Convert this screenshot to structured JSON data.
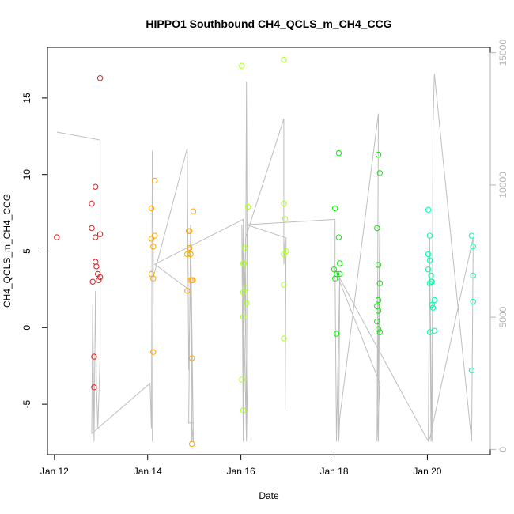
{
  "chart_data": {
    "type": "scatter",
    "title": "HIPPO1 Southbound CH4_QCLS_m_CH4_CCG",
    "xlabel": "Date",
    "ylabel": "CH4_QCLS_m_CH4_CCG",
    "x_unit": "days in January (date axis)",
    "xlim": [
      11.85,
      21.35
    ],
    "ylim": [
      -8.3,
      18.3
    ],
    "y2lim": [
      -200,
      15200
    ],
    "x_ticks": [
      {
        "value": 12,
        "label": "Jan 12"
      },
      {
        "value": 14,
        "label": "Jan 14"
      },
      {
        "value": 16,
        "label": "Jan 16"
      },
      {
        "value": 18,
        "label": "Jan 18"
      },
      {
        "value": 20,
        "label": "Jan 20"
      }
    ],
    "y_ticks": [
      {
        "value": -5,
        "label": "-5"
      },
      {
        "value": 0,
        "label": "0"
      },
      {
        "value": 5,
        "label": "5"
      },
      {
        "value": 10,
        "label": "10"
      },
      {
        "value": 15,
        "label": "15"
      }
    ],
    "y2_ticks": [
      {
        "value": 0,
        "label": "0"
      },
      {
        "value": 5000,
        "label": "5000"
      },
      {
        "value": 10000,
        "label": "10000"
      },
      {
        "value": 15000,
        "label": "15000"
      }
    ],
    "grid": false,
    "legend": "none",
    "colors": {
      "series": [
        "#e41a1c",
        "#ffa500",
        "#adff2f",
        "#00ee00",
        "#00ffaa"
      ],
      "altitude_line": "#bebebe",
      "right_axis": "#b3b3b3"
    },
    "series": [
      {
        "color": "#e41a1c",
        "points": [
          [
            12.05,
            5.9
          ],
          [
            12.8,
            8.1
          ],
          [
            12.8,
            6.5
          ],
          [
            12.88,
            5.9
          ],
          [
            12.88,
            9.2
          ],
          [
            12.98,
            16.3
          ],
          [
            12.98,
            6.1
          ],
          [
            12.88,
            4.3
          ],
          [
            12.9,
            4.0
          ],
          [
            12.93,
            3.5
          ],
          [
            12.95,
            3.1
          ],
          [
            12.98,
            3.3
          ],
          [
            12.82,
            3.0
          ],
          [
            12.85,
            -1.9
          ],
          [
            12.85,
            -3.9
          ]
        ]
      },
      {
        "color": "#ffa500",
        "points": [
          [
            14.15,
            9.6
          ],
          [
            14.08,
            7.8
          ],
          [
            14.08,
            5.8
          ],
          [
            14.15,
            6.0
          ],
          [
            14.12,
            5.3
          ],
          [
            14.08,
            3.5
          ],
          [
            14.12,
            3.2
          ],
          [
            14.12,
            -1.6
          ],
          [
            14.88,
            6.3
          ],
          [
            14.9,
            6.3
          ],
          [
            14.98,
            7.6
          ],
          [
            14.85,
            4.8
          ],
          [
            14.92,
            4.8
          ],
          [
            14.9,
            5.2
          ],
          [
            14.92,
            3.1
          ],
          [
            14.95,
            3.1
          ],
          [
            14.97,
            3.1
          ],
          [
            14.85,
            2.4
          ],
          [
            14.95,
            -2.0
          ],
          [
            14.95,
            -7.6
          ]
        ]
      },
      {
        "color": "#adff2f",
        "points": [
          [
            16.02,
            17.1
          ],
          [
            16.15,
            7.9
          ],
          [
            16.08,
            5.2
          ],
          [
            16.05,
            4.2
          ],
          [
            16.07,
            4.2
          ],
          [
            16.1,
            2.6
          ],
          [
            16.05,
            2.3
          ],
          [
            16.12,
            1.6
          ],
          [
            16.05,
            0.7
          ],
          [
            16.02,
            -3.4
          ],
          [
            16.05,
            -5.4
          ],
          [
            16.92,
            17.5
          ],
          [
            16.92,
            8.1
          ],
          [
            16.95,
            7.1
          ],
          [
            16.97,
            5.0
          ],
          [
            16.92,
            4.8
          ],
          [
            16.92,
            2.8
          ],
          [
            16.92,
            -0.7
          ]
        ]
      },
      {
        "color": "#00ee00",
        "points": [
          [
            18.1,
            11.4
          ],
          [
            18.02,
            7.8
          ],
          [
            18.1,
            5.9
          ],
          [
            18.12,
            4.2
          ],
          [
            18.0,
            3.8
          ],
          [
            18.05,
            3.5
          ],
          [
            18.02,
            3.2
          ],
          [
            18.12,
            3.5
          ],
          [
            18.05,
            -0.4
          ],
          [
            18.95,
            11.3
          ],
          [
            18.98,
            10.1
          ],
          [
            18.92,
            6.5
          ],
          [
            18.95,
            4.1
          ],
          [
            18.98,
            2.9
          ],
          [
            18.95,
            1.8
          ],
          [
            18.92,
            1.4
          ],
          [
            18.95,
            1.1
          ],
          [
            18.92,
            0.4
          ],
          [
            18.95,
            -0.1
          ],
          [
            18.98,
            -0.3
          ]
        ]
      },
      {
        "color": "#00ffaa",
        "points": [
          [
            20.02,
            7.7
          ],
          [
            20.05,
            6.0
          ],
          [
            20.02,
            4.8
          ],
          [
            20.05,
            4.4
          ],
          [
            20.02,
            3.8
          ],
          [
            20.08,
            3.4
          ],
          [
            20.08,
            3.0
          ],
          [
            20.1,
            3.0
          ],
          [
            20.05,
            2.9
          ],
          [
            20.1,
            1.5
          ],
          [
            20.12,
            1.3
          ],
          [
            20.15,
            1.8
          ],
          [
            20.15,
            -0.2
          ],
          [
            20.05,
            -0.3
          ],
          [
            20.95,
            6.0
          ],
          [
            20.98,
            5.3
          ],
          [
            20.98,
            3.4
          ],
          [
            20.98,
            1.7
          ],
          [
            20.95,
            -2.8
          ]
        ]
      }
    ],
    "altitude_line": [
      [
        12.05,
        12000
      ],
      [
        12.98,
        11700
      ],
      [
        12.98,
        3500
      ],
      [
        12.93,
        800
      ],
      [
        12.9,
        2500
      ],
      [
        12.88,
        6000
      ],
      [
        12.85,
        300
      ],
      [
        12.82,
        5500
      ],
      [
        12.8,
        600
      ],
      [
        14.05,
        2500
      ],
      [
        14.08,
        800
      ],
      [
        14.1,
        11300
      ],
      [
        14.12,
        7200
      ],
      [
        14.1,
        300
      ],
      [
        14.12,
        6500
      ],
      [
        14.85,
        11400
      ],
      [
        14.88,
        3000
      ],
      [
        14.92,
        6500
      ],
      [
        14.95,
        300
      ],
      [
        14.98,
        1000
      ],
      [
        14.88,
        1000
      ],
      [
        14.92,
        8500
      ],
      [
        14.98,
        300
      ],
      [
        14.92,
        6000
      ],
      [
        14.15,
        7000
      ],
      [
        16.05,
        8700
      ],
      [
        16.1,
        5500
      ],
      [
        16.12,
        13900
      ],
      [
        16.15,
        300
      ],
      [
        16.05,
        8500
      ],
      [
        16.05,
        300
      ],
      [
        16.02,
        8500
      ],
      [
        16.12,
        300
      ],
      [
        16.1,
        8000
      ],
      [
        16.92,
        12500
      ],
      [
        16.92,
        7000
      ],
      [
        16.95,
        8000
      ],
      [
        16.95,
        1500
      ],
      [
        16.97,
        8000
      ],
      [
        16.12,
        8500
      ],
      [
        18.02,
        8700
      ],
      [
        18.02,
        6800
      ],
      [
        18.05,
        300
      ],
      [
        18.12,
        6500
      ],
      [
        18.1,
        300
      ],
      [
        18.12,
        1200
      ],
      [
        18.95,
        12700
      ],
      [
        18.92,
        300
      ],
      [
        18.98,
        8600
      ],
      [
        18.95,
        300
      ],
      [
        18.98,
        8000
      ],
      [
        18.92,
        300
      ],
      [
        18.98,
        2500
      ],
      [
        18.02,
        6800
      ],
      [
        20.02,
        300
      ],
      [
        20.05,
        8000
      ],
      [
        20.08,
        300
      ],
      [
        20.05,
        7000
      ],
      [
        20.1,
        300
      ],
      [
        20.12,
        12200
      ],
      [
        20.15,
        14200
      ],
      [
        20.95,
        300
      ],
      [
        20.98,
        7200
      ],
      [
        20.98,
        8000
      ],
      [
        20.05,
        400
      ]
    ]
  }
}
